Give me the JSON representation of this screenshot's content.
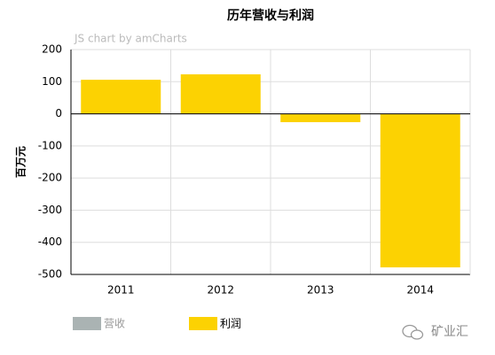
{
  "chart_data": {
    "type": "bar",
    "title": "历年营收与利润",
    "credit": "JS chart by amCharts",
    "y_label": "百万元",
    "categories": [
      "2011",
      "2012",
      "2013",
      "2014"
    ],
    "series": [
      {
        "name": "营收",
        "color": "#aab3b3",
        "hidden": true,
        "values": [
          null,
          null,
          null,
          null
        ]
      },
      {
        "name": "利润",
        "color": "#fcd202",
        "values": [
          106,
          123,
          -26,
          -478
        ]
      }
    ],
    "ylim": [
      -500,
      200
    ],
    "yticks": [
      -500,
      -400,
      -300,
      -200,
      -100,
      0,
      100,
      200
    ],
    "grid": true,
    "brand": "矿业汇"
  }
}
